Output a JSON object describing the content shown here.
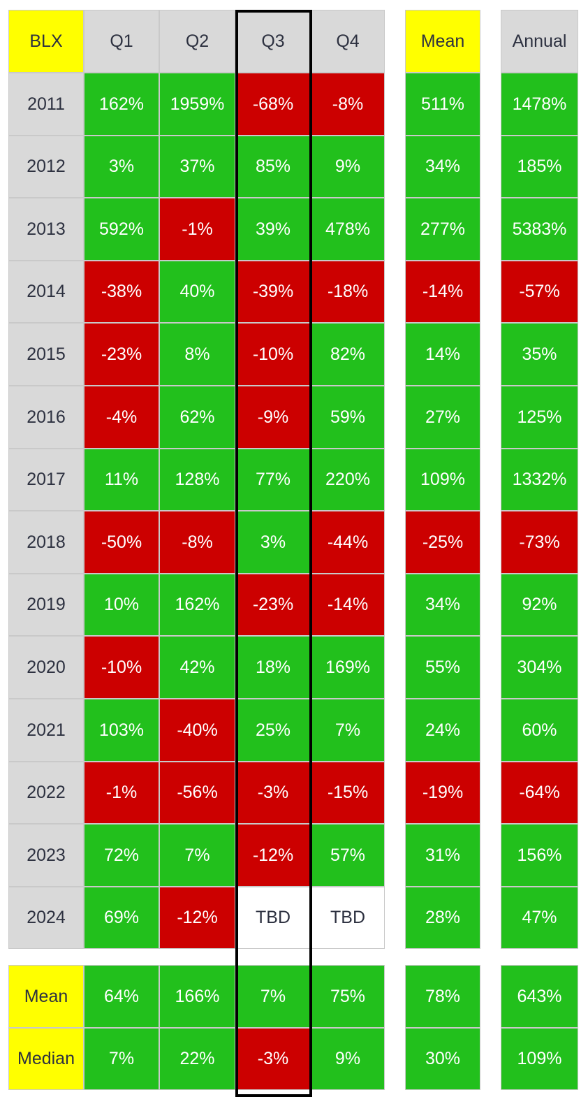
{
  "ticker": "BLX",
  "headers": [
    "Q1",
    "Q2",
    "Q3",
    "Q4"
  ],
  "mean_header": "Mean",
  "annual_header": "Annual",
  "highlighted_column": "Q3",
  "colors": {
    "positive": "#22c01c",
    "negative": "#cc0000",
    "header": "#d9d9d9",
    "label_highlight": "#ffff00",
    "q3_border": "#000000"
  },
  "rows": [
    {
      "year": "2011",
      "q": [
        [
          "162%",
          "pos"
        ],
        [
          "1959%",
          "pos"
        ],
        [
          "-68%",
          "neg"
        ],
        [
          "-8%",
          "neg"
        ]
      ],
      "mean": [
        "511%",
        "pos"
      ],
      "annual": [
        "1478%",
        "pos"
      ]
    },
    {
      "year": "2012",
      "q": [
        [
          "3%",
          "pos"
        ],
        [
          "37%",
          "pos"
        ],
        [
          "85%",
          "pos"
        ],
        [
          "9%",
          "pos"
        ]
      ],
      "mean": [
        "34%",
        "pos"
      ],
      "annual": [
        "185%",
        "pos"
      ]
    },
    {
      "year": "2013",
      "q": [
        [
          "592%",
          "pos"
        ],
        [
          "-1%",
          "neg"
        ],
        [
          "39%",
          "pos"
        ],
        [
          "478%",
          "pos"
        ]
      ],
      "mean": [
        "277%",
        "pos"
      ],
      "annual": [
        "5383%",
        "pos"
      ]
    },
    {
      "year": "2014",
      "q": [
        [
          "-38%",
          "neg"
        ],
        [
          "40%",
          "pos"
        ],
        [
          "-39%",
          "neg"
        ],
        [
          "-18%",
          "neg"
        ]
      ],
      "mean": [
        "-14%",
        "neg"
      ],
      "annual": [
        "-57%",
        "neg"
      ]
    },
    {
      "year": "2015",
      "q": [
        [
          "-23%",
          "neg"
        ],
        [
          "8%",
          "pos"
        ],
        [
          "-10%",
          "neg"
        ],
        [
          "82%",
          "pos"
        ]
      ],
      "mean": [
        "14%",
        "pos"
      ],
      "annual": [
        "35%",
        "pos"
      ]
    },
    {
      "year": "2016",
      "q": [
        [
          "-4%",
          "neg"
        ],
        [
          "62%",
          "pos"
        ],
        [
          "-9%",
          "neg"
        ],
        [
          "59%",
          "pos"
        ]
      ],
      "mean": [
        "27%",
        "pos"
      ],
      "annual": [
        "125%",
        "pos"
      ]
    },
    {
      "year": "2017",
      "q": [
        [
          "11%",
          "pos"
        ],
        [
          "128%",
          "pos"
        ],
        [
          "77%",
          "pos"
        ],
        [
          "220%",
          "pos"
        ]
      ],
      "mean": [
        "109%",
        "pos"
      ],
      "annual": [
        "1332%",
        "pos"
      ]
    },
    {
      "year": "2018",
      "q": [
        [
          "-50%",
          "neg"
        ],
        [
          "-8%",
          "neg"
        ],
        [
          "3%",
          "pos"
        ],
        [
          "-44%",
          "neg"
        ]
      ],
      "mean": [
        "-25%",
        "neg"
      ],
      "annual": [
        "-73%",
        "neg"
      ]
    },
    {
      "year": "2019",
      "q": [
        [
          "10%",
          "pos"
        ],
        [
          "162%",
          "pos"
        ],
        [
          "-23%",
          "neg"
        ],
        [
          "-14%",
          "neg"
        ]
      ],
      "mean": [
        "34%",
        "pos"
      ],
      "annual": [
        "92%",
        "pos"
      ]
    },
    {
      "year": "2020",
      "q": [
        [
          "-10%",
          "neg"
        ],
        [
          "42%",
          "pos"
        ],
        [
          "18%",
          "pos"
        ],
        [
          "169%",
          "pos"
        ]
      ],
      "mean": [
        "55%",
        "pos"
      ],
      "annual": [
        "304%",
        "pos"
      ]
    },
    {
      "year": "2021",
      "q": [
        [
          "103%",
          "pos"
        ],
        [
          "-40%",
          "neg"
        ],
        [
          "25%",
          "pos"
        ],
        [
          "7%",
          "pos"
        ]
      ],
      "mean": [
        "24%",
        "pos"
      ],
      "annual": [
        "60%",
        "pos"
      ]
    },
    {
      "year": "2022",
      "q": [
        [
          "-1%",
          "neg"
        ],
        [
          "-56%",
          "neg"
        ],
        [
          "-3%",
          "neg"
        ],
        [
          "-15%",
          "neg"
        ]
      ],
      "mean": [
        "-19%",
        "neg"
      ],
      "annual": [
        "-64%",
        "neg"
      ]
    },
    {
      "year": "2023",
      "q": [
        [
          "72%",
          "pos"
        ],
        [
          "7%",
          "pos"
        ],
        [
          "-12%",
          "neg"
        ],
        [
          "57%",
          "pos"
        ]
      ],
      "mean": [
        "31%",
        "pos"
      ],
      "annual": [
        "156%",
        "pos"
      ]
    },
    {
      "year": "2024",
      "q": [
        [
          "69%",
          "pos"
        ],
        [
          "-12%",
          "neg"
        ],
        [
          "TBD",
          "tbd"
        ],
        [
          "TBD",
          "tbd"
        ]
      ],
      "mean": [
        "28%",
        "pos"
      ],
      "annual": [
        "47%",
        "pos"
      ]
    }
  ],
  "summary": [
    {
      "label": "Mean",
      "q": [
        [
          "64%",
          "pos"
        ],
        [
          "166%",
          "pos"
        ],
        [
          "7%",
          "pos"
        ],
        [
          "75%",
          "pos"
        ]
      ],
      "mean": [
        "78%",
        "pos"
      ],
      "annual": [
        "643%",
        "pos"
      ]
    },
    {
      "label": "Median",
      "q": [
        [
          "7%",
          "pos"
        ],
        [
          "22%",
          "pos"
        ],
        [
          "-3%",
          "neg"
        ],
        [
          "9%",
          "pos"
        ]
      ],
      "mean": [
        "30%",
        "pos"
      ],
      "annual": [
        "109%",
        "pos"
      ]
    }
  ]
}
